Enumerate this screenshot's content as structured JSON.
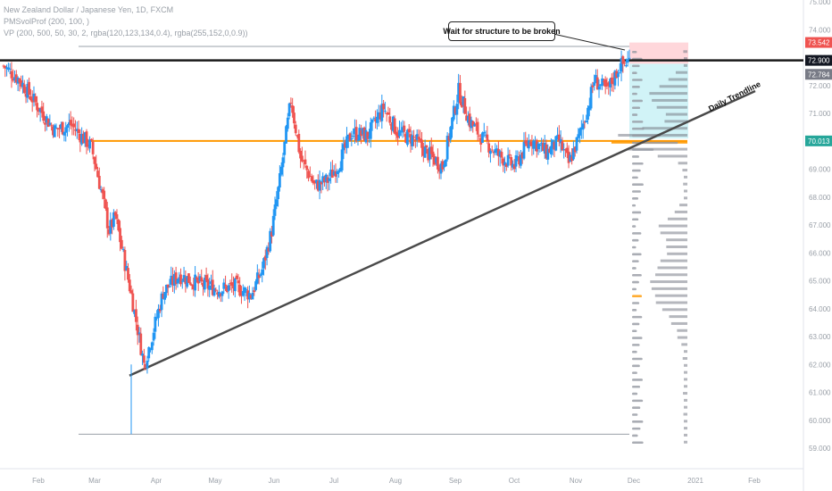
{
  "header": {
    "symbol_line": "New Zealand Dollar / Japanese Yen, 1D, FXCM",
    "indicator_1": "PMSvolProf (200, 100, )",
    "indicator_2": "VP (200, 500, 50, 30, 2, rgba(120,123,134,0.4), rgba(255,152,0,0.9))"
  },
  "annotations": {
    "callout": "Wait for structure to be broken",
    "trendline_label": "Daily Trendline"
  },
  "colors": {
    "up": "#2196f3",
    "down": "#ef5350",
    "horizontal_level": "#ff9800",
    "resistance_line": "#1a1a1a",
    "trendline": "#4a4a4a",
    "profile": "#787b86",
    "poc": "#ff9800",
    "target_zone": "#b2ebf2",
    "stop_zone": "#ffcdd2"
  },
  "chart_data": {
    "type": "candlestick",
    "instrument": "New Zealand Dollar / Japanese Yen",
    "timeframe": "1D",
    "source": "FXCM",
    "y_axis": {
      "range": [
        58.8,
        75.2
      ],
      "ticks": [
        "59.000",
        "60.000",
        "61.000",
        "62.000",
        "63.000",
        "64.000",
        "65.000",
        "66.000",
        "67.000",
        "68.000",
        "69.000",
        "70.000",
        "71.000",
        "72.000",
        "73.000",
        "74.000",
        "75.000"
      ]
    },
    "x_axis": {
      "ticks": [
        "Feb",
        "Mar",
        "Apr",
        "May",
        "Jun",
        "Jul",
        "Aug",
        "Sep",
        "Oct",
        "Nov",
        "Dec",
        "2021",
        "Feb"
      ]
    },
    "price_labels": [
      {
        "value": "73.542",
        "kind": "stop"
      },
      {
        "value": "72.900",
        "kind": "resistance"
      },
      {
        "value": "72.784",
        "kind": "last"
      },
      {
        "value": "70.013",
        "kind": "level"
      }
    ],
    "levels": {
      "resistance": 72.9,
      "orange_level": 70.013,
      "range_top": 73.4,
      "range_bottom": 59.5,
      "target_zone": [
        70.1,
        72.78
      ],
      "stop_zone": [
        72.78,
        73.54
      ]
    },
    "trendline": {
      "from": {
        "x": "Mar 19",
        "y": 61.6
      },
      "to": {
        "x": "Dec 31",
        "y": 71.8
      }
    },
    "path": [
      {
        "x": 0,
        "y": 72.7
      },
      {
        "x": 10,
        "y": 72.2
      },
      {
        "x": 22,
        "y": 71.2
      },
      {
        "x": 32,
        "y": 70.4
      },
      {
        "x": 42,
        "y": 70.6
      },
      {
        "x": 55,
        "y": 69.8
      },
      {
        "x": 62,
        "y": 68.0
      },
      {
        "x": 66,
        "y": 66.8
      },
      {
        "x": 70,
        "y": 67.3
      },
      {
        "x": 80,
        "y": 64.5
      },
      {
        "x": 88,
        "y": 62.0
      },
      {
        "x": 92,
        "y": 62.8
      },
      {
        "x": 100,
        "y": 64.6
      },
      {
        "x": 110,
        "y": 65.2
      },
      {
        "x": 122,
        "y": 64.9
      },
      {
        "x": 135,
        "y": 64.7
      },
      {
        "x": 145,
        "y": 64.8
      },
      {
        "x": 155,
        "y": 64.5
      },
      {
        "x": 162,
        "y": 65.4
      },
      {
        "x": 168,
        "y": 66.8
      },
      {
        "x": 173,
        "y": 68.6
      },
      {
        "x": 180,
        "y": 71.5
      },
      {
        "x": 186,
        "y": 69.4
      },
      {
        "x": 195,
        "y": 68.4
      },
      {
        "x": 203,
        "y": 68.6
      },
      {
        "x": 210,
        "y": 69.2
      },
      {
        "x": 218,
        "y": 70.3
      },
      {
        "x": 228,
        "y": 70.2
      },
      {
        "x": 238,
        "y": 71.2
      },
      {
        "x": 247,
        "y": 70.3
      },
      {
        "x": 257,
        "y": 70.1
      },
      {
        "x": 265,
        "y": 69.6
      },
      {
        "x": 275,
        "y": 69.1
      },
      {
        "x": 285,
        "y": 71.8
      },
      {
        "x": 292,
        "y": 70.7
      },
      {
        "x": 300,
        "y": 70.1
      },
      {
        "x": 310,
        "y": 69.5
      },
      {
        "x": 320,
        "y": 69.1
      },
      {
        "x": 330,
        "y": 70.1
      },
      {
        "x": 340,
        "y": 69.6
      },
      {
        "x": 348,
        "y": 70.0
      },
      {
        "x": 354,
        "y": 69.2
      },
      {
        "x": 360,
        "y": 70.1
      },
      {
        "x": 366,
        "y": 71.2
      },
      {
        "x": 370,
        "y": 72.2
      },
      {
        "x": 378,
        "y": 71.8
      },
      {
        "x": 386,
        "y": 72.7
      },
      {
        "x": 392,
        "y": 72.9
      }
    ],
    "volume_profile": "horizontal histogram on right, heaviest near 70.0 with POC highlighted; secondary POC near 64.5"
  }
}
